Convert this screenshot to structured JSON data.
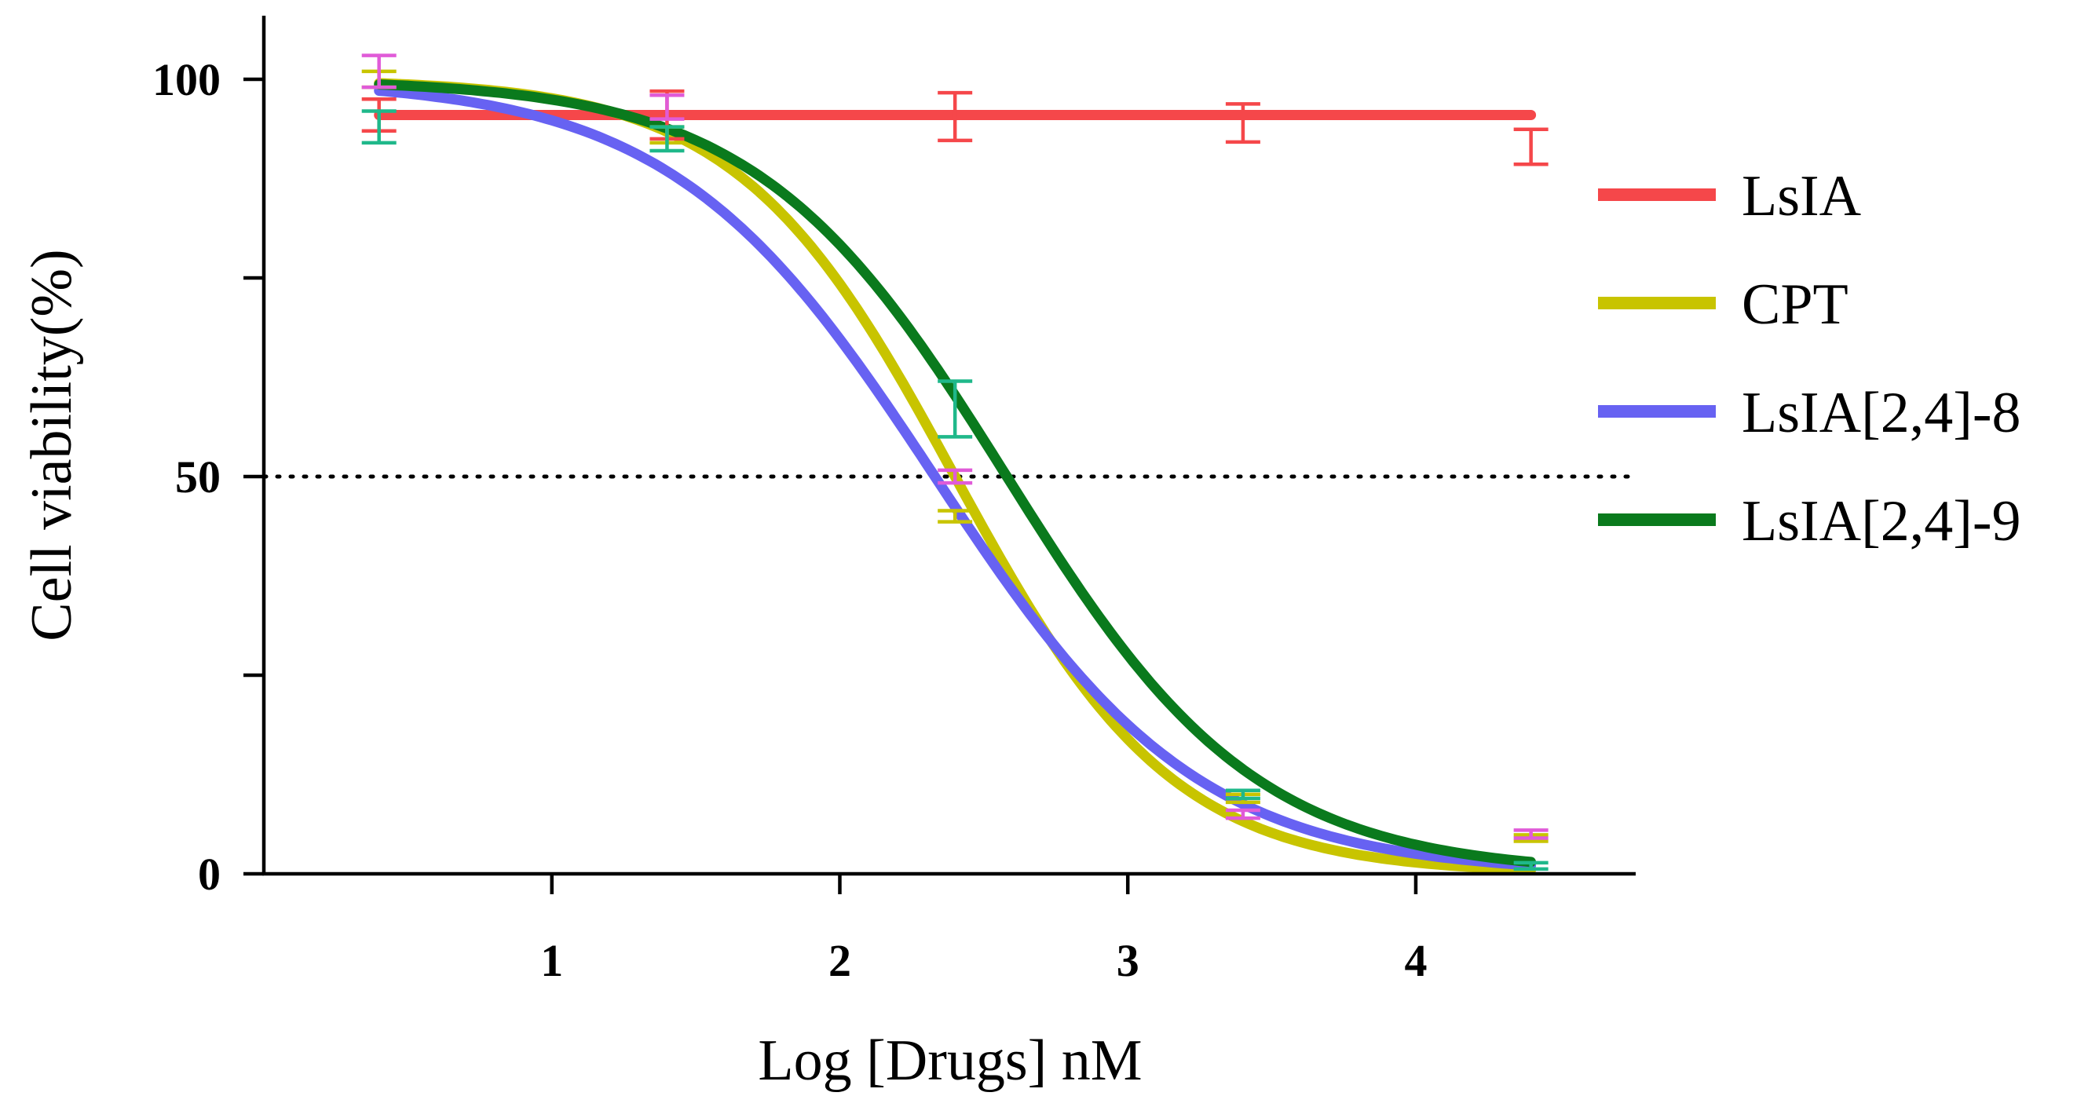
{
  "chart_data": {
    "type": "line",
    "title": "",
    "xlabel": "Log [Drugs] nM",
    "ylabel": "Cell viability(%)",
    "xlim": [
      0,
      4.75
    ],
    "ylim": [
      0,
      108
    ],
    "x_ticks": [
      1,
      2,
      3,
      4
    ],
    "x_tick_labels": [
      "1",
      "2",
      "3",
      "4"
    ],
    "y_ticks": [
      0,
      25,
      50,
      75,
      100
    ],
    "y_tick_labels": [
      "0",
      "",
      "50",
      "",
      "100"
    ],
    "reference_line": {
      "y": 50,
      "style": "dotted"
    },
    "legend_position": "right",
    "series": [
      {
        "name": "LsIA",
        "color": "#F5474A",
        "curve": {
          "kind": "constant",
          "value": 95.5
        },
        "points": [
          {
            "x": 0.4,
            "y": 95.5,
            "err": 2.0
          },
          {
            "x": 1.4,
            "y": 95.5,
            "err": 3.0
          },
          {
            "x": 2.4,
            "y": 95.3,
            "err": 3.0
          },
          {
            "x": 3.4,
            "y": 94.5,
            "err": 2.4
          },
          {
            "x": 4.4,
            "y": 91.5,
            "err": 2.2
          }
        ]
      },
      {
        "name": "CPT",
        "color": "#C8C400",
        "curve": {
          "kind": "logistic",
          "top": 100,
          "bottom": 0,
          "logIC50": 2.4,
          "hill": -1.15
        },
        "points": [
          {
            "x": 0.4,
            "y": 100.0,
            "err": 1.0
          },
          {
            "x": 1.4,
            "y": 93.0,
            "err": 1.0
          },
          {
            "x": 2.4,
            "y": 45.0,
            "err": 0.7
          },
          {
            "x": 3.4,
            "y": 9.5,
            "err": 0.5
          },
          {
            "x": 4.4,
            "y": 4.5,
            "err": 0.4
          }
        ]
      },
      {
        "name": "LsIA[2,4]-8",
        "color": "#6762F2",
        "curve": {
          "kind": "logistic",
          "top": 100,
          "bottom": 0,
          "logIC50": 2.33,
          "hill": -0.95
        },
        "points": [
          {
            "x": 0.4,
            "y": 101.0,
            "err": 2.0
          },
          {
            "x": 1.4,
            "y": 96.5,
            "err": 1.5
          },
          {
            "x": 2.4,
            "y": 50.0,
            "err": 0.8
          },
          {
            "x": 3.4,
            "y": 7.5,
            "err": 0.5
          },
          {
            "x": 4.4,
            "y": 5.0,
            "err": 0.5
          }
        ]
      },
      {
        "name": "LsIA[2,4]-9",
        "color": "#0A7A1D",
        "curve": {
          "kind": "logistic",
          "top": 100,
          "bottom": 0,
          "logIC50": 2.58,
          "hill": -1.0
        },
        "points": [
          {
            "x": 0.4,
            "y": 94.0,
            "err": 2.0
          },
          {
            "x": 1.4,
            "y": 92.5,
            "err": 1.5
          },
          {
            "x": 2.4,
            "y": 58.5,
            "err": 3.5
          },
          {
            "x": 3.4,
            "y": 10.0,
            "err": 0.5
          },
          {
            "x": 4.4,
            "y": 1.0,
            "err": 0.4
          }
        ],
        "errbar_color": "#1FB88A"
      }
    ],
    "errbar_colors_by_index": [
      "#F5474A",
      "#C8C400",
      "#E05BD8",
      "#1FB88A"
    ]
  }
}
